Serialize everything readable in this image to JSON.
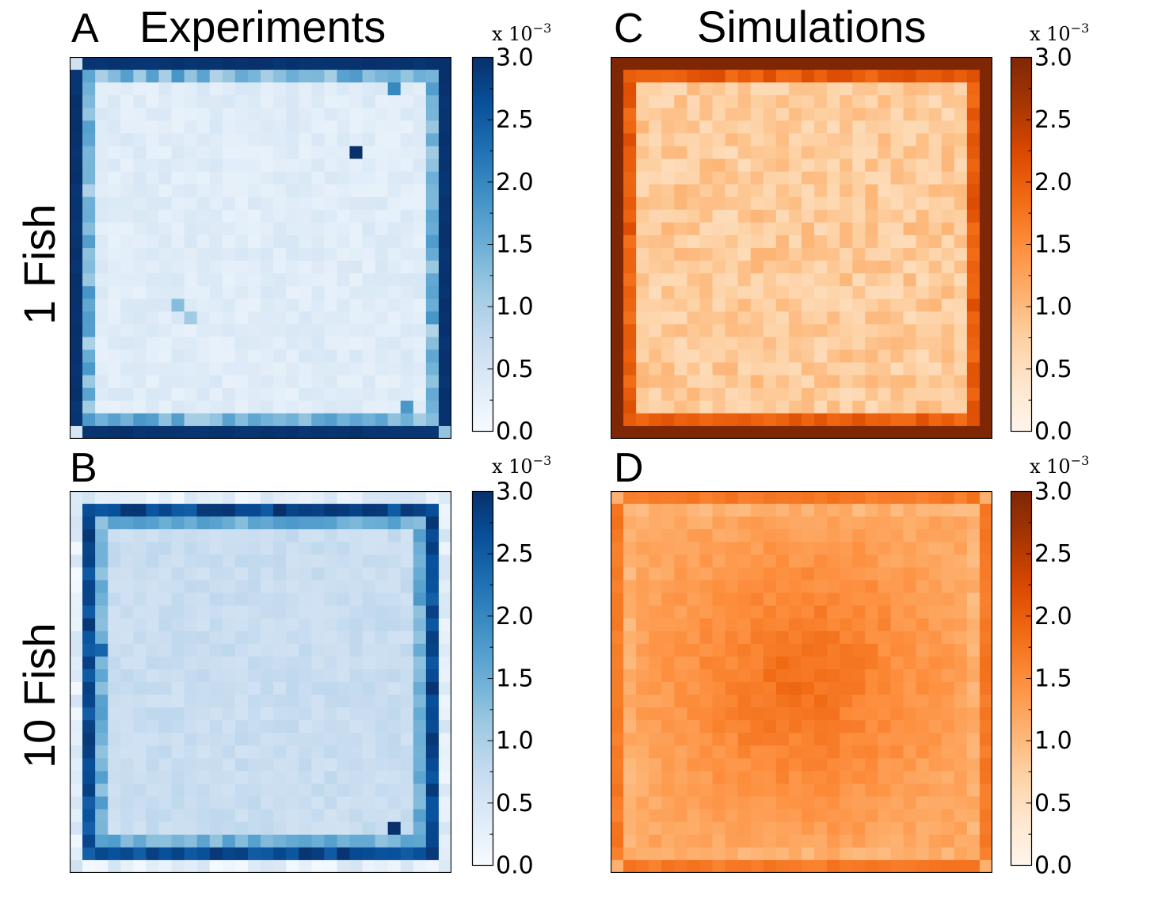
{
  "columns": {
    "left_title": "Experiments",
    "right_title": "Simulations"
  },
  "rows": {
    "top_label": "1 Fish",
    "bottom_label": "10 Fish"
  },
  "scale_factor": {
    "prefix": "x 10",
    "exponent": "−3"
  },
  "colors": {
    "blues": [
      "#f7fbff",
      "#deebf7",
      "#c6dbef",
      "#9ecae1",
      "#6baed6",
      "#4292c6",
      "#2171b5",
      "#08519c",
      "#08306b"
    ],
    "oranges": [
      "#fff5eb",
      "#fee6ce",
      "#fdd0a2",
      "#fdae6b",
      "#fd8d3c",
      "#f16913",
      "#d94801",
      "#a63603",
      "#7f2704"
    ]
  },
  "chart_data": [
    {
      "type": "heatmap",
      "panel": "A",
      "title": "Experiments",
      "row_label": "1 Fish",
      "colormap": "blues",
      "grid": [
        30,
        30
      ],
      "colorbar": {
        "min": 0.0,
        "max": 3.0,
        "ticks": [
          "0.0",
          "0.5",
          "1.0",
          "1.5",
          "2.0",
          "2.5",
          "3.0"
        ],
        "scale": "x 10^-3"
      },
      "interior_value": 0.35,
      "edge_ring_value": 3.0,
      "second_ring_value": 1.4,
      "corner_values": {
        "top_left": 0.6,
        "top_right": 3.0,
        "bottom_left": 0.5,
        "bottom_right": 1.2
      },
      "hotspots": [
        {
          "row": 7,
          "col": 22,
          "value": 3.0
        },
        {
          "row": 19,
          "col": 8,
          "value": 1.3
        },
        {
          "row": 20,
          "col": 9,
          "value": 1.1
        },
        {
          "row": 2,
          "col": 25,
          "value": 2.0
        },
        {
          "row": 27,
          "col": 26,
          "value": 1.8
        }
      ]
    },
    {
      "type": "heatmap",
      "panel": "B",
      "title": "",
      "row_label": "10 Fish",
      "colormap": "blues",
      "grid": [
        30,
        30
      ],
      "colorbar": {
        "min": 0.0,
        "max": 3.0,
        "ticks": [
          "0.0",
          "0.5",
          "1.0",
          "1.5",
          "2.0",
          "2.5",
          "3.0"
        ],
        "scale": "x 10^-3"
      },
      "interior_value": 0.7,
      "edge_ring_value": 0.3,
      "second_ring_value": 2.7,
      "third_ring_value": 1.5,
      "corner_values": {
        "top_left": 0.4,
        "top_right": 0.4,
        "bottom_left": 0.6,
        "bottom_right": 0.4
      },
      "hotspots": [
        {
          "row": 1,
          "col": 16,
          "value": 3.0
        },
        {
          "row": 26,
          "col": 25,
          "value": 3.0
        },
        {
          "row": 12,
          "col": 2,
          "value": 2.4
        }
      ]
    },
    {
      "type": "heatmap",
      "panel": "C",
      "title": "Simulations",
      "row_label": "1 Fish",
      "colormap": "oranges",
      "grid": [
        30,
        30
      ],
      "colorbar": {
        "min": 0.0,
        "max": 3.0,
        "ticks": [
          "0.0",
          "0.5",
          "1.0",
          "1.5",
          "2.0",
          "2.5",
          "3.0"
        ],
        "scale": "x 10^-3"
      },
      "interior_value": 0.8,
      "edge_ring_value": 3.0,
      "second_ring_value": 2.0,
      "corner_values": {
        "top_left": 3.0,
        "top_right": 3.0,
        "bottom_left": 3.0,
        "bottom_right": 3.0
      },
      "hotspots": []
    },
    {
      "type": "heatmap",
      "panel": "D",
      "title": "",
      "row_label": "10 Fish",
      "colormap": "oranges",
      "grid": [
        30,
        30
      ],
      "colorbar": {
        "min": 0.0,
        "max": 3.0,
        "ticks": [
          "0.0",
          "0.5",
          "1.0",
          "1.5",
          "2.0",
          "2.5",
          "3.0"
        ],
        "scale": "x 10^-3"
      },
      "interior_value": 1.5,
      "edge_ring_value": 1.7,
      "second_ring_value": 1.1,
      "center_value": 1.85,
      "corner_values": {
        "top_left": 1.1,
        "top_right": 1.1,
        "bottom_left": 1.1,
        "bottom_right": 1.1
      },
      "hotspots": []
    }
  ]
}
